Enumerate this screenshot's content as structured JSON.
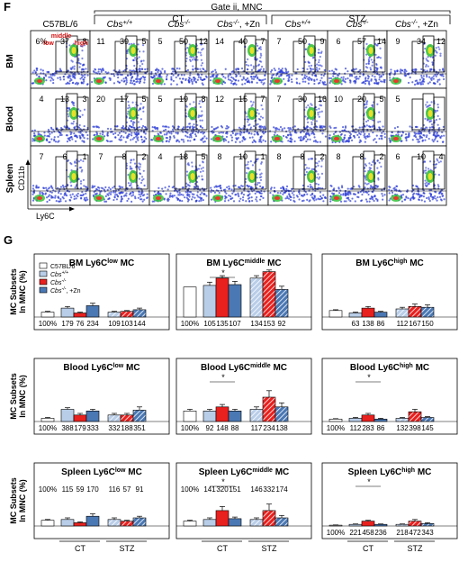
{
  "panel_f": {
    "letter": "F",
    "gate_title": "Gate ii, MNC",
    "group_ct": "CT",
    "group_stz": "STZ",
    "columns": [
      "C57BL/6",
      "Cbs+/+",
      "Cbs-/-",
      "Cbs-/-, +Zn",
      "Cbs+/+",
      "Cbs-/-",
      "Cbs-/-, +Zn"
    ],
    "rows": [
      "BM",
      "Blood",
      "Spleen"
    ],
    "y_axis_label": "CD11b",
    "x_axis_label": "Ly6C",
    "gate_labels": {
      "low": "low",
      "middle": "middle",
      "high": "high"
    },
    "percentages": [
      [
        [
          "6%",
          "37",
          "8"
        ],
        [
          "11",
          "39",
          "5"
        ],
        [
          "5",
          "50",
          "12"
        ],
        [
          "14",
          "40",
          "7"
        ],
        [
          "7",
          "50",
          "9"
        ],
        [
          "6",
          "57",
          "14"
        ],
        [
          "9",
          "34",
          "12"
        ]
      ],
      [
        [
          "4",
          "13",
          "3"
        ],
        [
          "20",
          "17",
          "5"
        ],
        [
          "5",
          "19",
          "8"
        ],
        [
          "12",
          "15",
          "7"
        ],
        [
          "7",
          "30",
          "16"
        ],
        [
          "10",
          "20",
          "5"
        ],
        [
          "5",
          ""
        ]
      ],
      [
        [
          "7",
          "6",
          "1"
        ],
        [
          "7",
          "8",
          "2"
        ],
        [
          "4",
          "18",
          "5"
        ],
        [
          "8",
          "10",
          "1"
        ],
        [
          "8",
          "8",
          "2"
        ],
        [
          "8",
          "8",
          "2"
        ],
        [
          "6",
          "10",
          "4"
        ]
      ]
    ]
  },
  "panel_g": {
    "letter": "G",
    "y_label_line1": "MC Subsets",
    "y_label_line2": "In MNC (%)",
    "x_groups": [
      "CT",
      "STZ"
    ],
    "legend": [
      "C57BL/6",
      "Cbs+/+",
      "Cbs-/-",
      "Cbs-/-, +Zn"
    ]
  },
  "chart_data": [
    {
      "type": "bar",
      "title": "BM Ly6Clow MC",
      "series_names": [
        "C57BL/6",
        "Cbs+/+",
        "Cbs-/-",
        "Cbs-/-, +Zn"
      ],
      "values": [
        6,
        11,
        5,
        14,
        6,
        7,
        9
      ],
      "errors": [
        1,
        2,
        1,
        3,
        1,
        1,
        2
      ],
      "percent_labels": [
        "100%",
        "179",
        "76",
        "234",
        "109",
        "103",
        "144"
      ],
      "ylim": [
        0,
        60
      ]
    },
    {
      "type": "bar",
      "title": "BM Ly6Cmiddle MC",
      "values": [
        37,
        39,
        48,
        40,
        48,
        56,
        34
      ],
      "errors": [
        0,
        4,
        3,
        4,
        3,
        2,
        4
      ],
      "percent_labels": [
        "100%",
        "105",
        "135",
        "107",
        "134",
        "153",
        "92"
      ],
      "ylim": [
        0,
        60
      ]
    },
    {
      "type": "bar",
      "title": "BM Ly6Chigh MC",
      "values": [
        8,
        5,
        11,
        6,
        10,
        13,
        12
      ],
      "errors": [
        1,
        1,
        2,
        1,
        2,
        3,
        3
      ],
      "percent_labels": [
        "",
        "63",
        "138",
        "86",
        "112",
        "167",
        "150"
      ],
      "ylim": [
        0,
        60
      ]
    },
    {
      "type": "bar",
      "title": "Blood Ly6Clow MC",
      "values": [
        4,
        15,
        8,
        13,
        8,
        8,
        14
      ],
      "errors": [
        1,
        2,
        2,
        2,
        2,
        2,
        4
      ],
      "percent_labels": [
        "100%",
        "388",
        "179",
        "333",
        "332",
        "188",
        "351"
      ],
      "ylim": [
        0,
        60
      ]
    },
    {
      "type": "bar",
      "title": "Blood Ly6Cmiddle MC",
      "values": [
        13,
        13,
        18,
        13,
        15,
        30,
        18
      ],
      "errors": [
        2,
        2,
        3,
        2,
        3,
        8,
        5
      ],
      "percent_labels": [
        "100%",
        "92",
        "148",
        "88",
        "117",
        "234",
        "138"
      ],
      "ylim": [
        0,
        60
      ]
    },
    {
      "type": "bar",
      "title": "Blood Ly6Chigh MC",
      "values": [
        3,
        4,
        8,
        3,
        4,
        12,
        5
      ],
      "errors": [
        0.5,
        1,
        2,
        1,
        1,
        3,
        1
      ],
      "percent_labels": [
        "100%",
        "112",
        "283",
        "86",
        "132",
        "398",
        "145"
      ],
      "ylim": [
        0,
        60
      ]
    },
    {
      "type": "bar",
      "title": "Spleen Ly6Clow MC",
      "values": [
        7,
        8,
        4,
        12,
        8,
        6,
        10
      ],
      "errors": [
        1,
        2,
        1,
        3,
        2,
        1,
        2
      ],
      "percent_labels": [
        "100%",
        "115",
        "59",
        "170",
        "116",
        "57",
        "91"
      ],
      "ylim": [
        0,
        60
      ]
    },
    {
      "type": "bar",
      "title": "Spleen Ly6Cmiddle MC",
      "values": [
        6,
        8,
        19,
        9,
        8,
        19,
        10
      ],
      "errors": [
        1,
        2,
        5,
        2,
        2,
        8,
        3
      ],
      "percent_labels": [
        "100%",
        "141",
        "320",
        "151",
        "146",
        "332",
        "174"
      ],
      "ylim": [
        0,
        60
      ]
    },
    {
      "type": "bar",
      "title": "Spleen Ly6Chigh MC",
      "values": [
        1,
        2,
        6,
        2,
        2,
        6,
        3
      ],
      "errors": [
        0.3,
        0.5,
        1,
        0.5,
        0.5,
        2,
        1
      ],
      "percent_labels": [
        "100%",
        "221",
        "458",
        "236",
        "218",
        "472",
        "343"
      ],
      "ylim": [
        0,
        60
      ]
    }
  ]
}
